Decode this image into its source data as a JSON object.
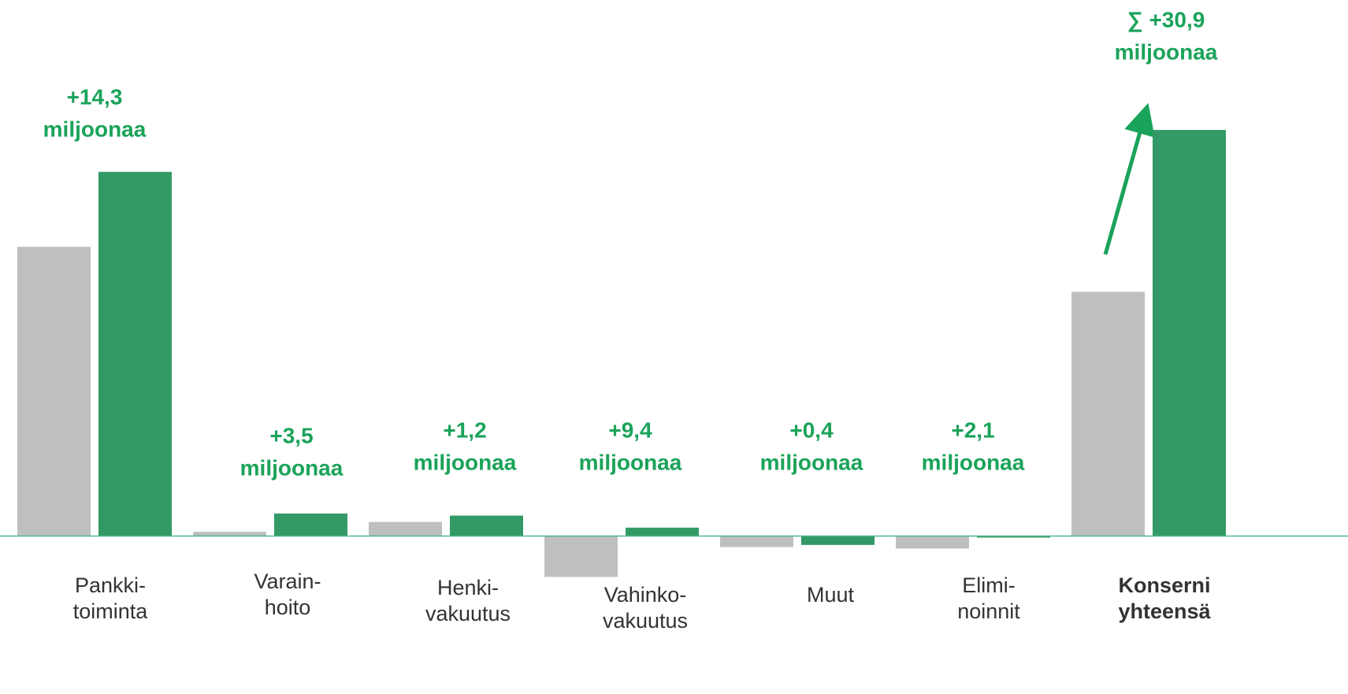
{
  "chart_data": {
    "type": "bar",
    "categories": [
      [
        "Pankki-",
        "toiminta"
      ],
      [
        "Varain-",
        "hoito"
      ],
      [
        "Henki-",
        "vakuutus"
      ],
      [
        "Vahinko-",
        "vakuutus"
      ],
      [
        "Muut"
      ],
      [
        "Elimi-",
        "noinnit"
      ],
      [
        "Konserni",
        "yhteensä"
      ]
    ],
    "series": [
      {
        "color": "#bfbfbf",
        "values": [
          55.2,
          0.8,
          2.7,
          -7.8,
          -2.1,
          -2.4,
          46.6
        ]
      },
      {
        "color": "#339966",
        "values": [
          69.5,
          4.3,
          3.9,
          1.6,
          -1.7,
          -0.3,
          77.5
        ]
      }
    ],
    "annotations": [
      [
        "+14,3",
        "miljoonaa"
      ],
      [
        "+3,5",
        "miljoonaa"
      ],
      [
        "+1,2",
        "miljoonaa"
      ],
      [
        "+9,4",
        "miljoonaa"
      ],
      [
        "+0,4",
        "miljoonaa"
      ],
      [
        "+2,1",
        "miljoonaa"
      ],
      [
        "∑ +30,9",
        "miljoonaa"
      ]
    ],
    "annotation_color": "#1aa35a",
    "ylim": [
      -30,
      102
    ]
  }
}
